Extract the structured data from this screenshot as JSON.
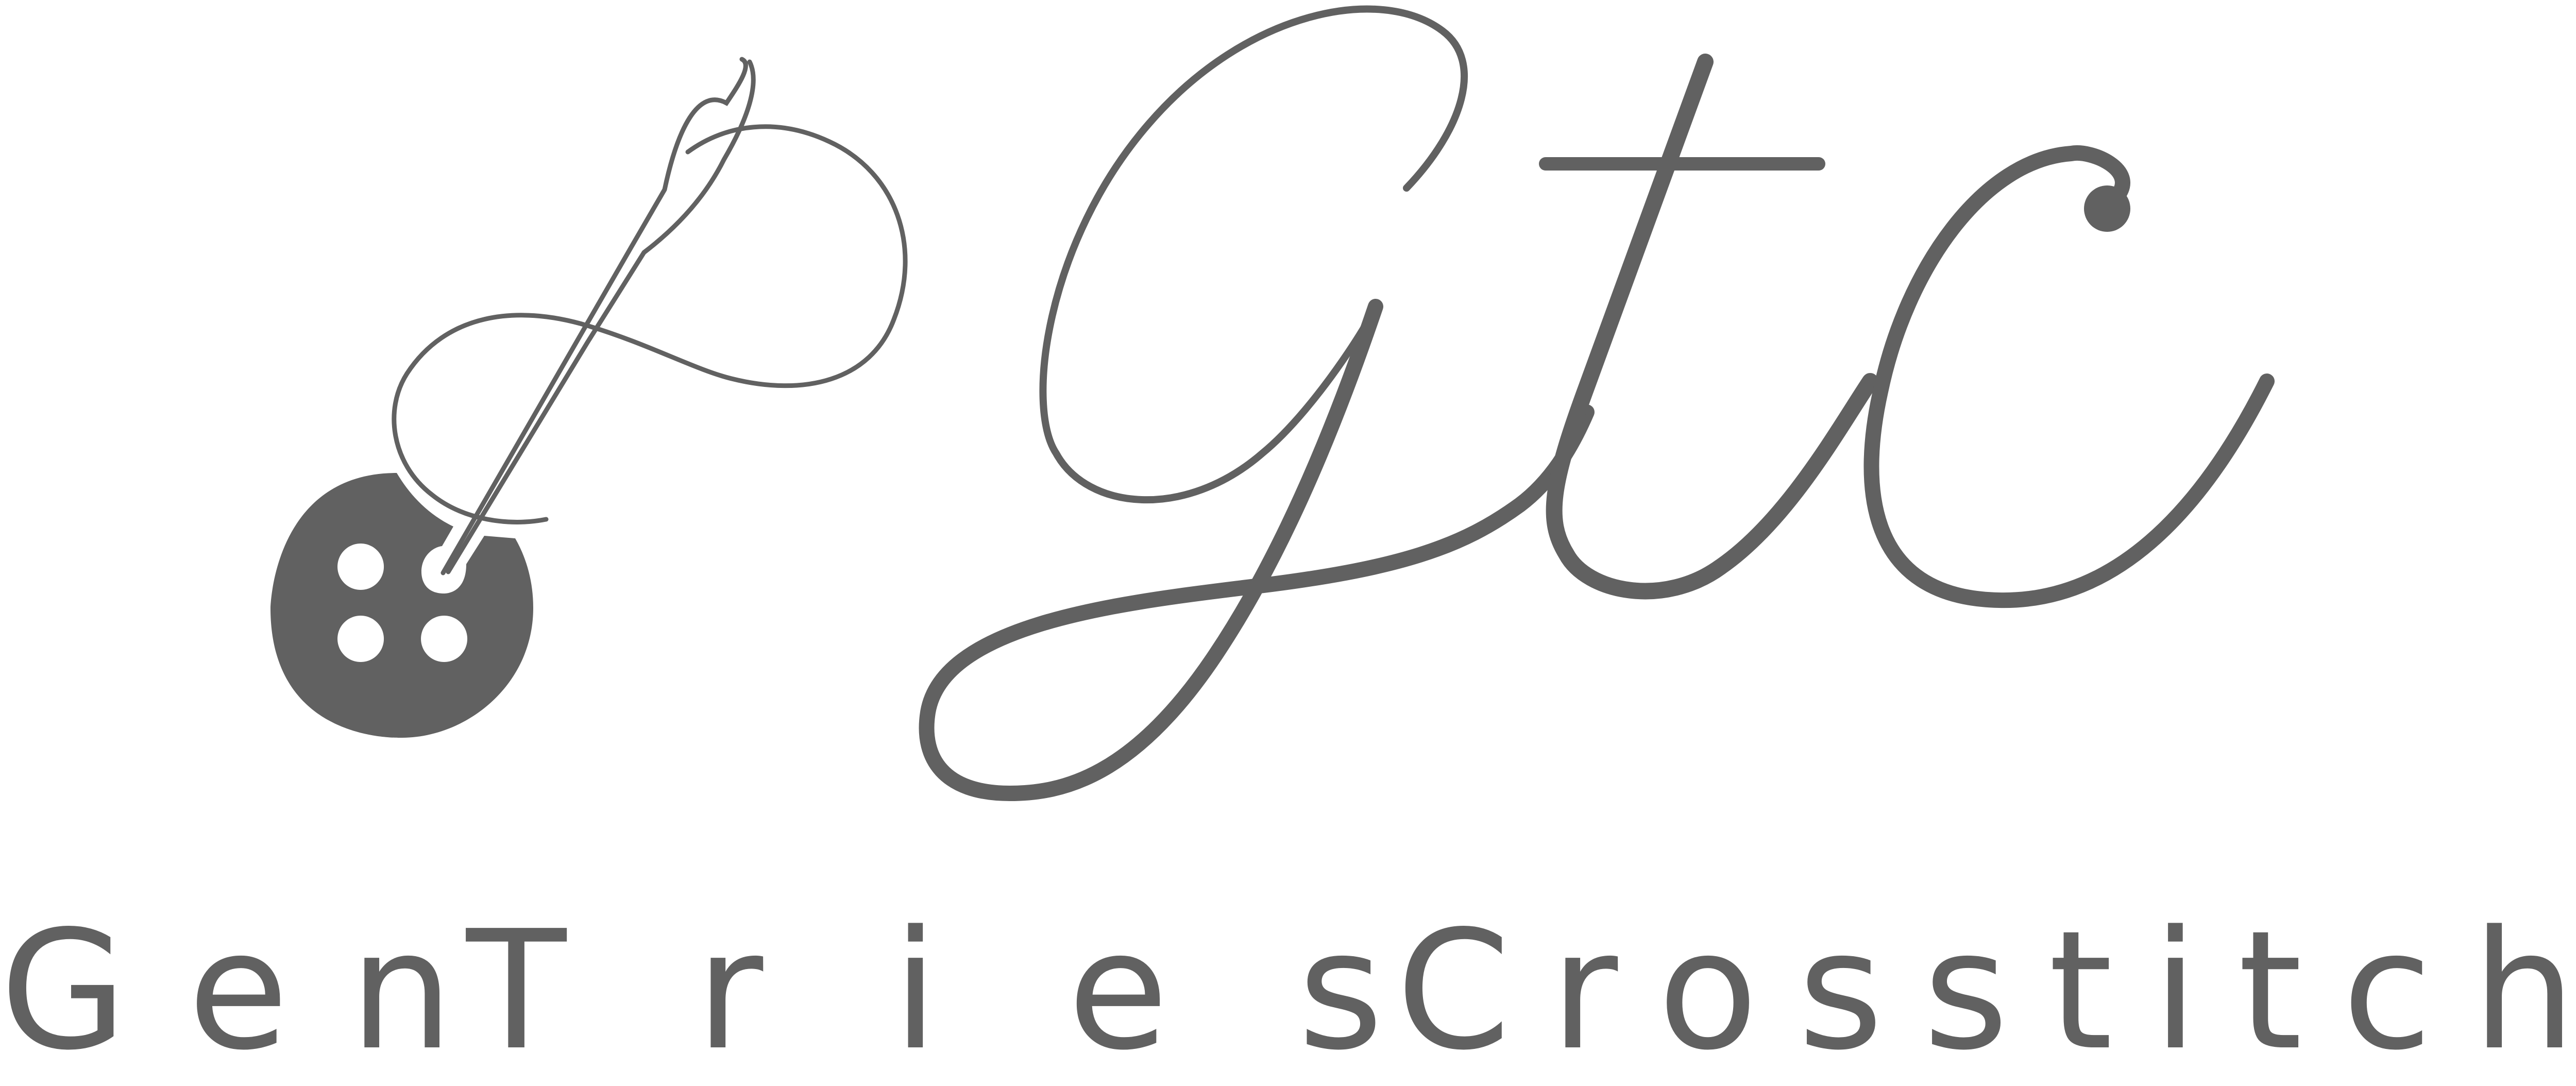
{
  "logo": {
    "monogram": "Gtc",
    "brand_name": "Gen Tries Crosstitch",
    "words": [
      "Gen",
      "Tries",
      "Crosstitch"
    ],
    "icon": "needle-thread-button-icon",
    "color": "#616161",
    "background": "#ffffff"
  }
}
